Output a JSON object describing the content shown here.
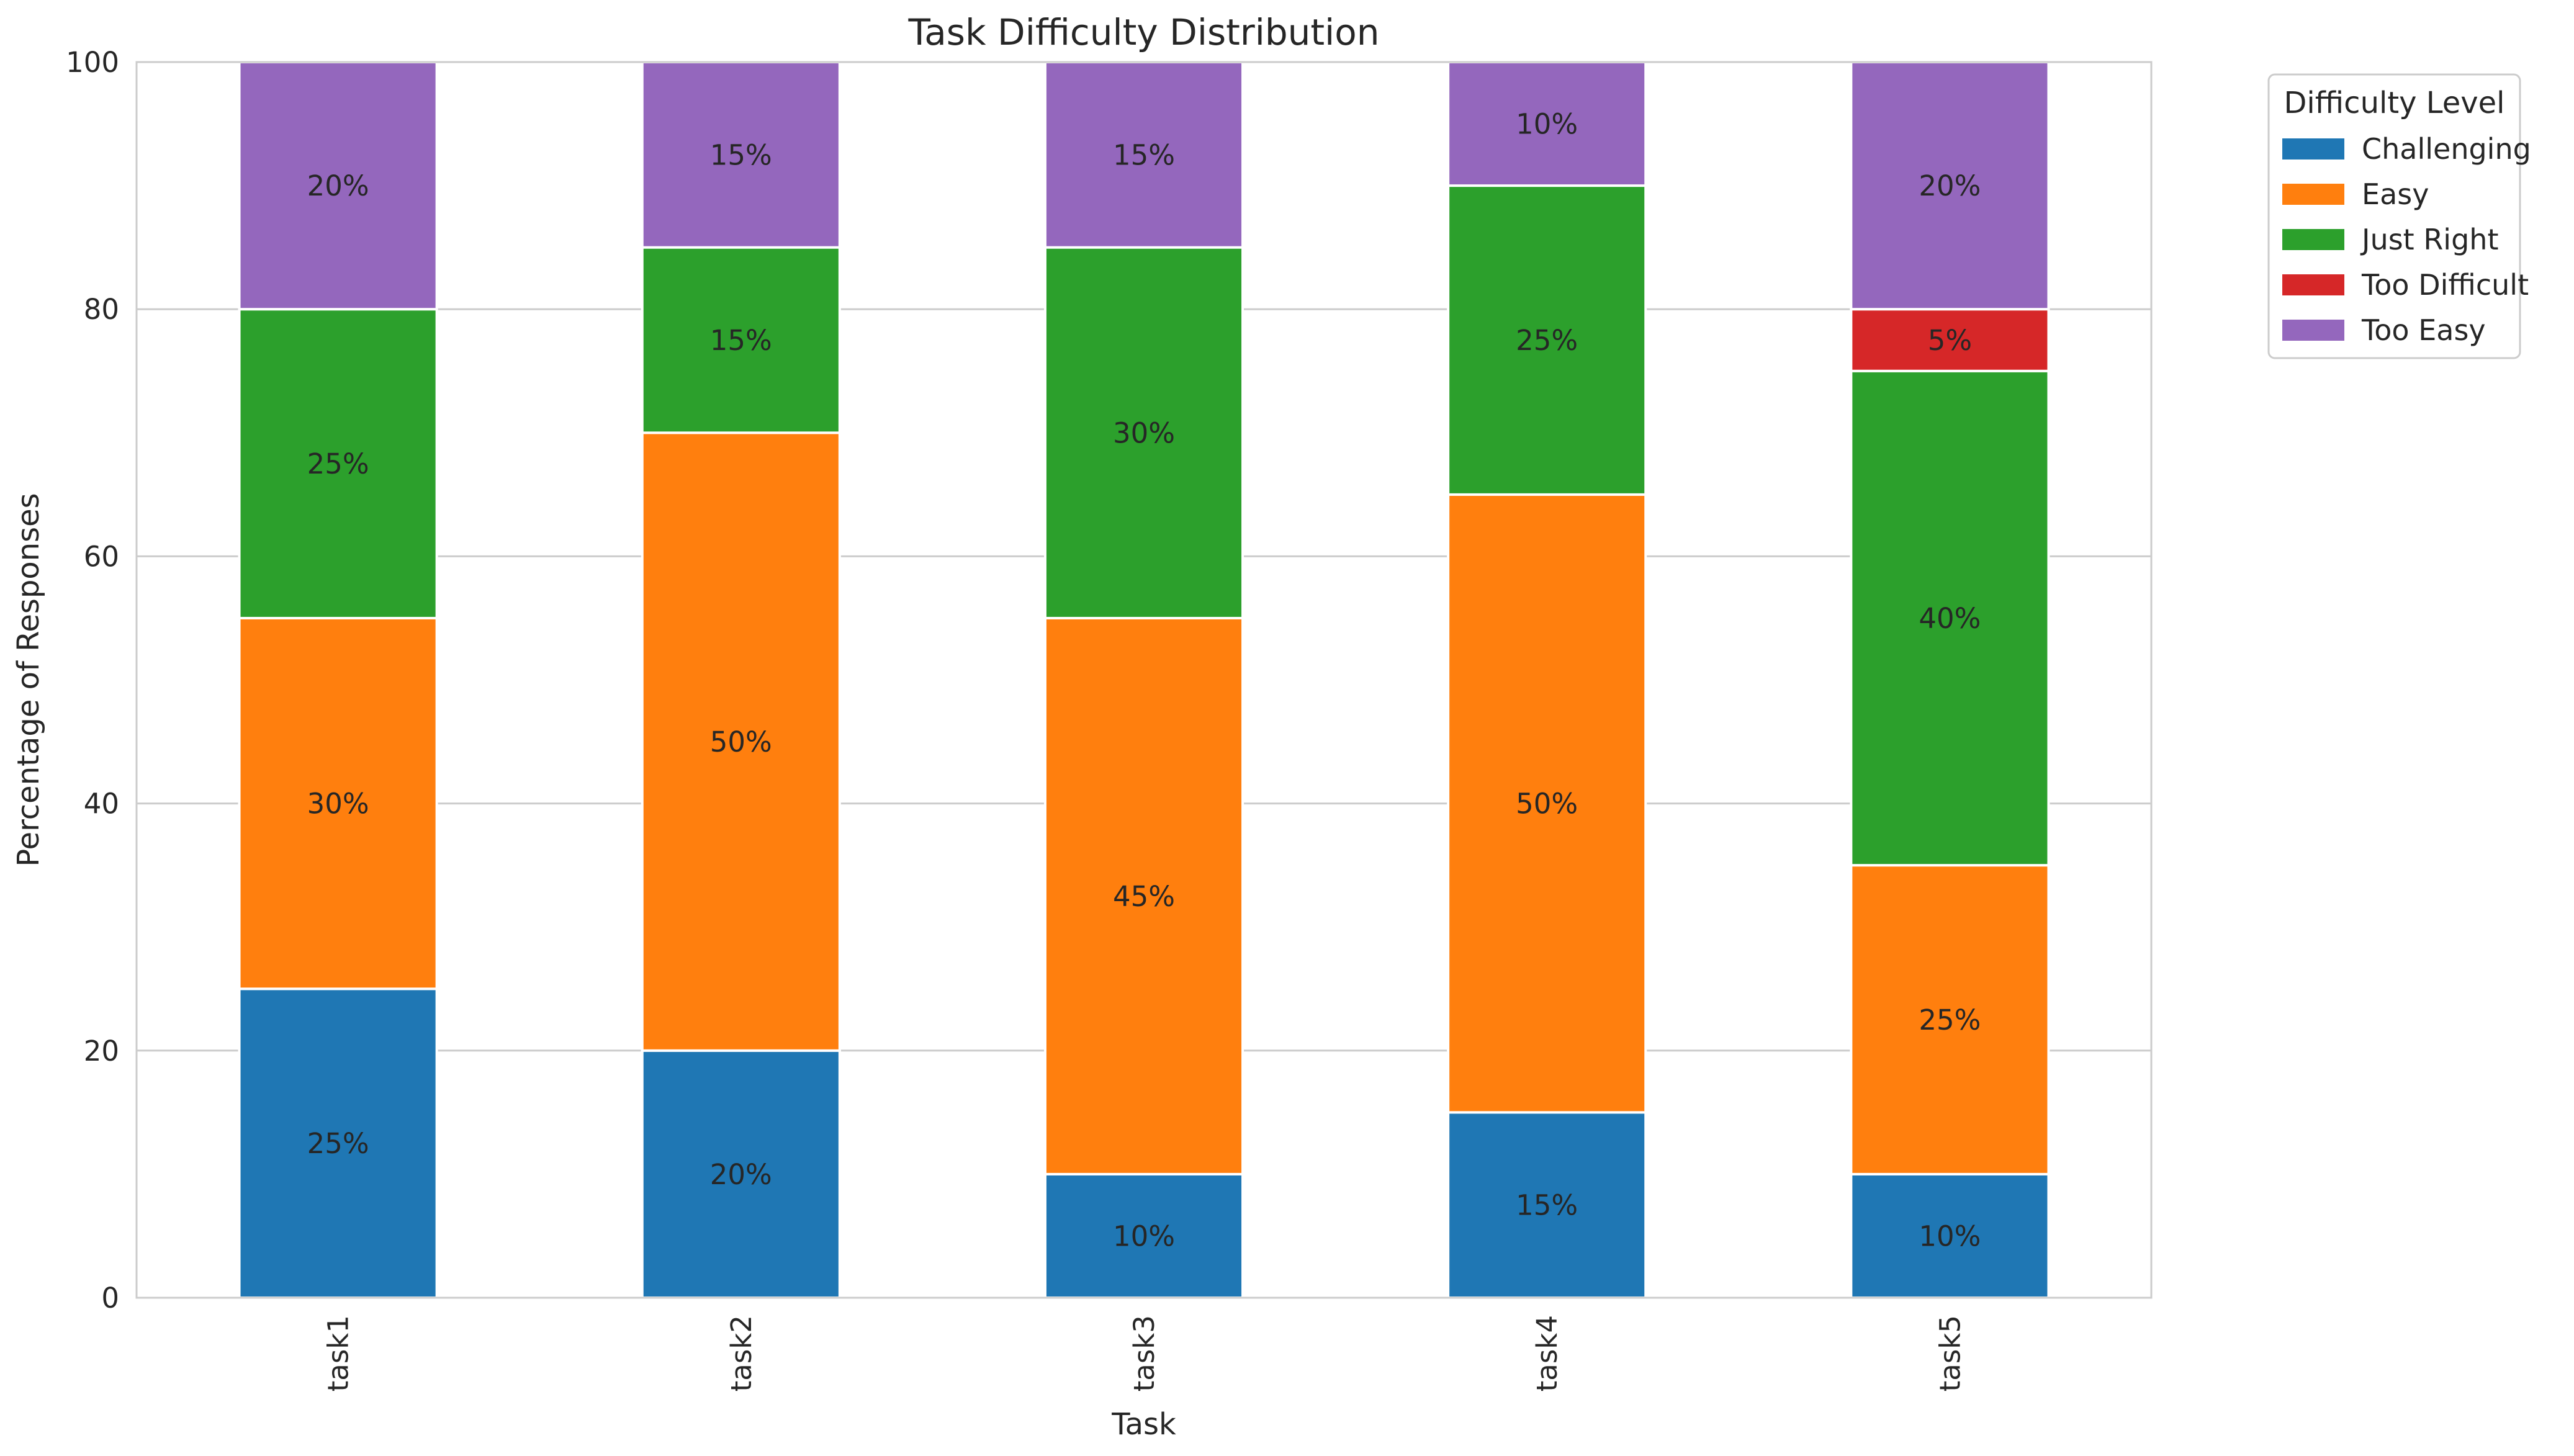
{
  "chart_data": {
    "type": "bar",
    "stacked": true,
    "title": "Task Difficulty Distribution",
    "xlabel": "Task",
    "ylabel": "Percentage of Responses",
    "categories": [
      "task1",
      "task2",
      "task3",
      "task4",
      "task5"
    ],
    "ylim": [
      0,
      100
    ],
    "yticks": [
      0,
      20,
      40,
      60,
      80,
      100
    ],
    "grid": true,
    "legend": {
      "title": "Difficulty Level",
      "placement": "outside-top-right"
    },
    "series": [
      {
        "name": "Challenging",
        "color": "#1f77b4",
        "values": [
          25,
          20,
          10,
          15,
          10
        ],
        "labels": [
          "25%",
          "20%",
          "10%",
          "15%",
          "10%"
        ]
      },
      {
        "name": "Easy",
        "color": "#ff7f0e",
        "values": [
          30,
          50,
          45,
          50,
          25
        ],
        "labels": [
          "30%",
          "50%",
          "45%",
          "50%",
          "25%"
        ]
      },
      {
        "name": "Just Right",
        "color": "#2ca02c",
        "values": [
          25,
          15,
          30,
          25,
          40
        ],
        "labels": [
          "25%",
          "15%",
          "30%",
          "25%",
          "40%"
        ]
      },
      {
        "name": "Too Difficult",
        "color": "#d62728",
        "values": [
          0,
          0,
          0,
          0,
          5
        ],
        "labels": [
          "",
          "",
          "",
          "",
          "5%"
        ]
      },
      {
        "name": "Too Easy",
        "color": "#9467bd",
        "values": [
          20,
          15,
          15,
          10,
          20
        ],
        "labels": [
          "20%",
          "15%",
          "15%",
          "10%",
          "20%"
        ]
      }
    ]
  }
}
